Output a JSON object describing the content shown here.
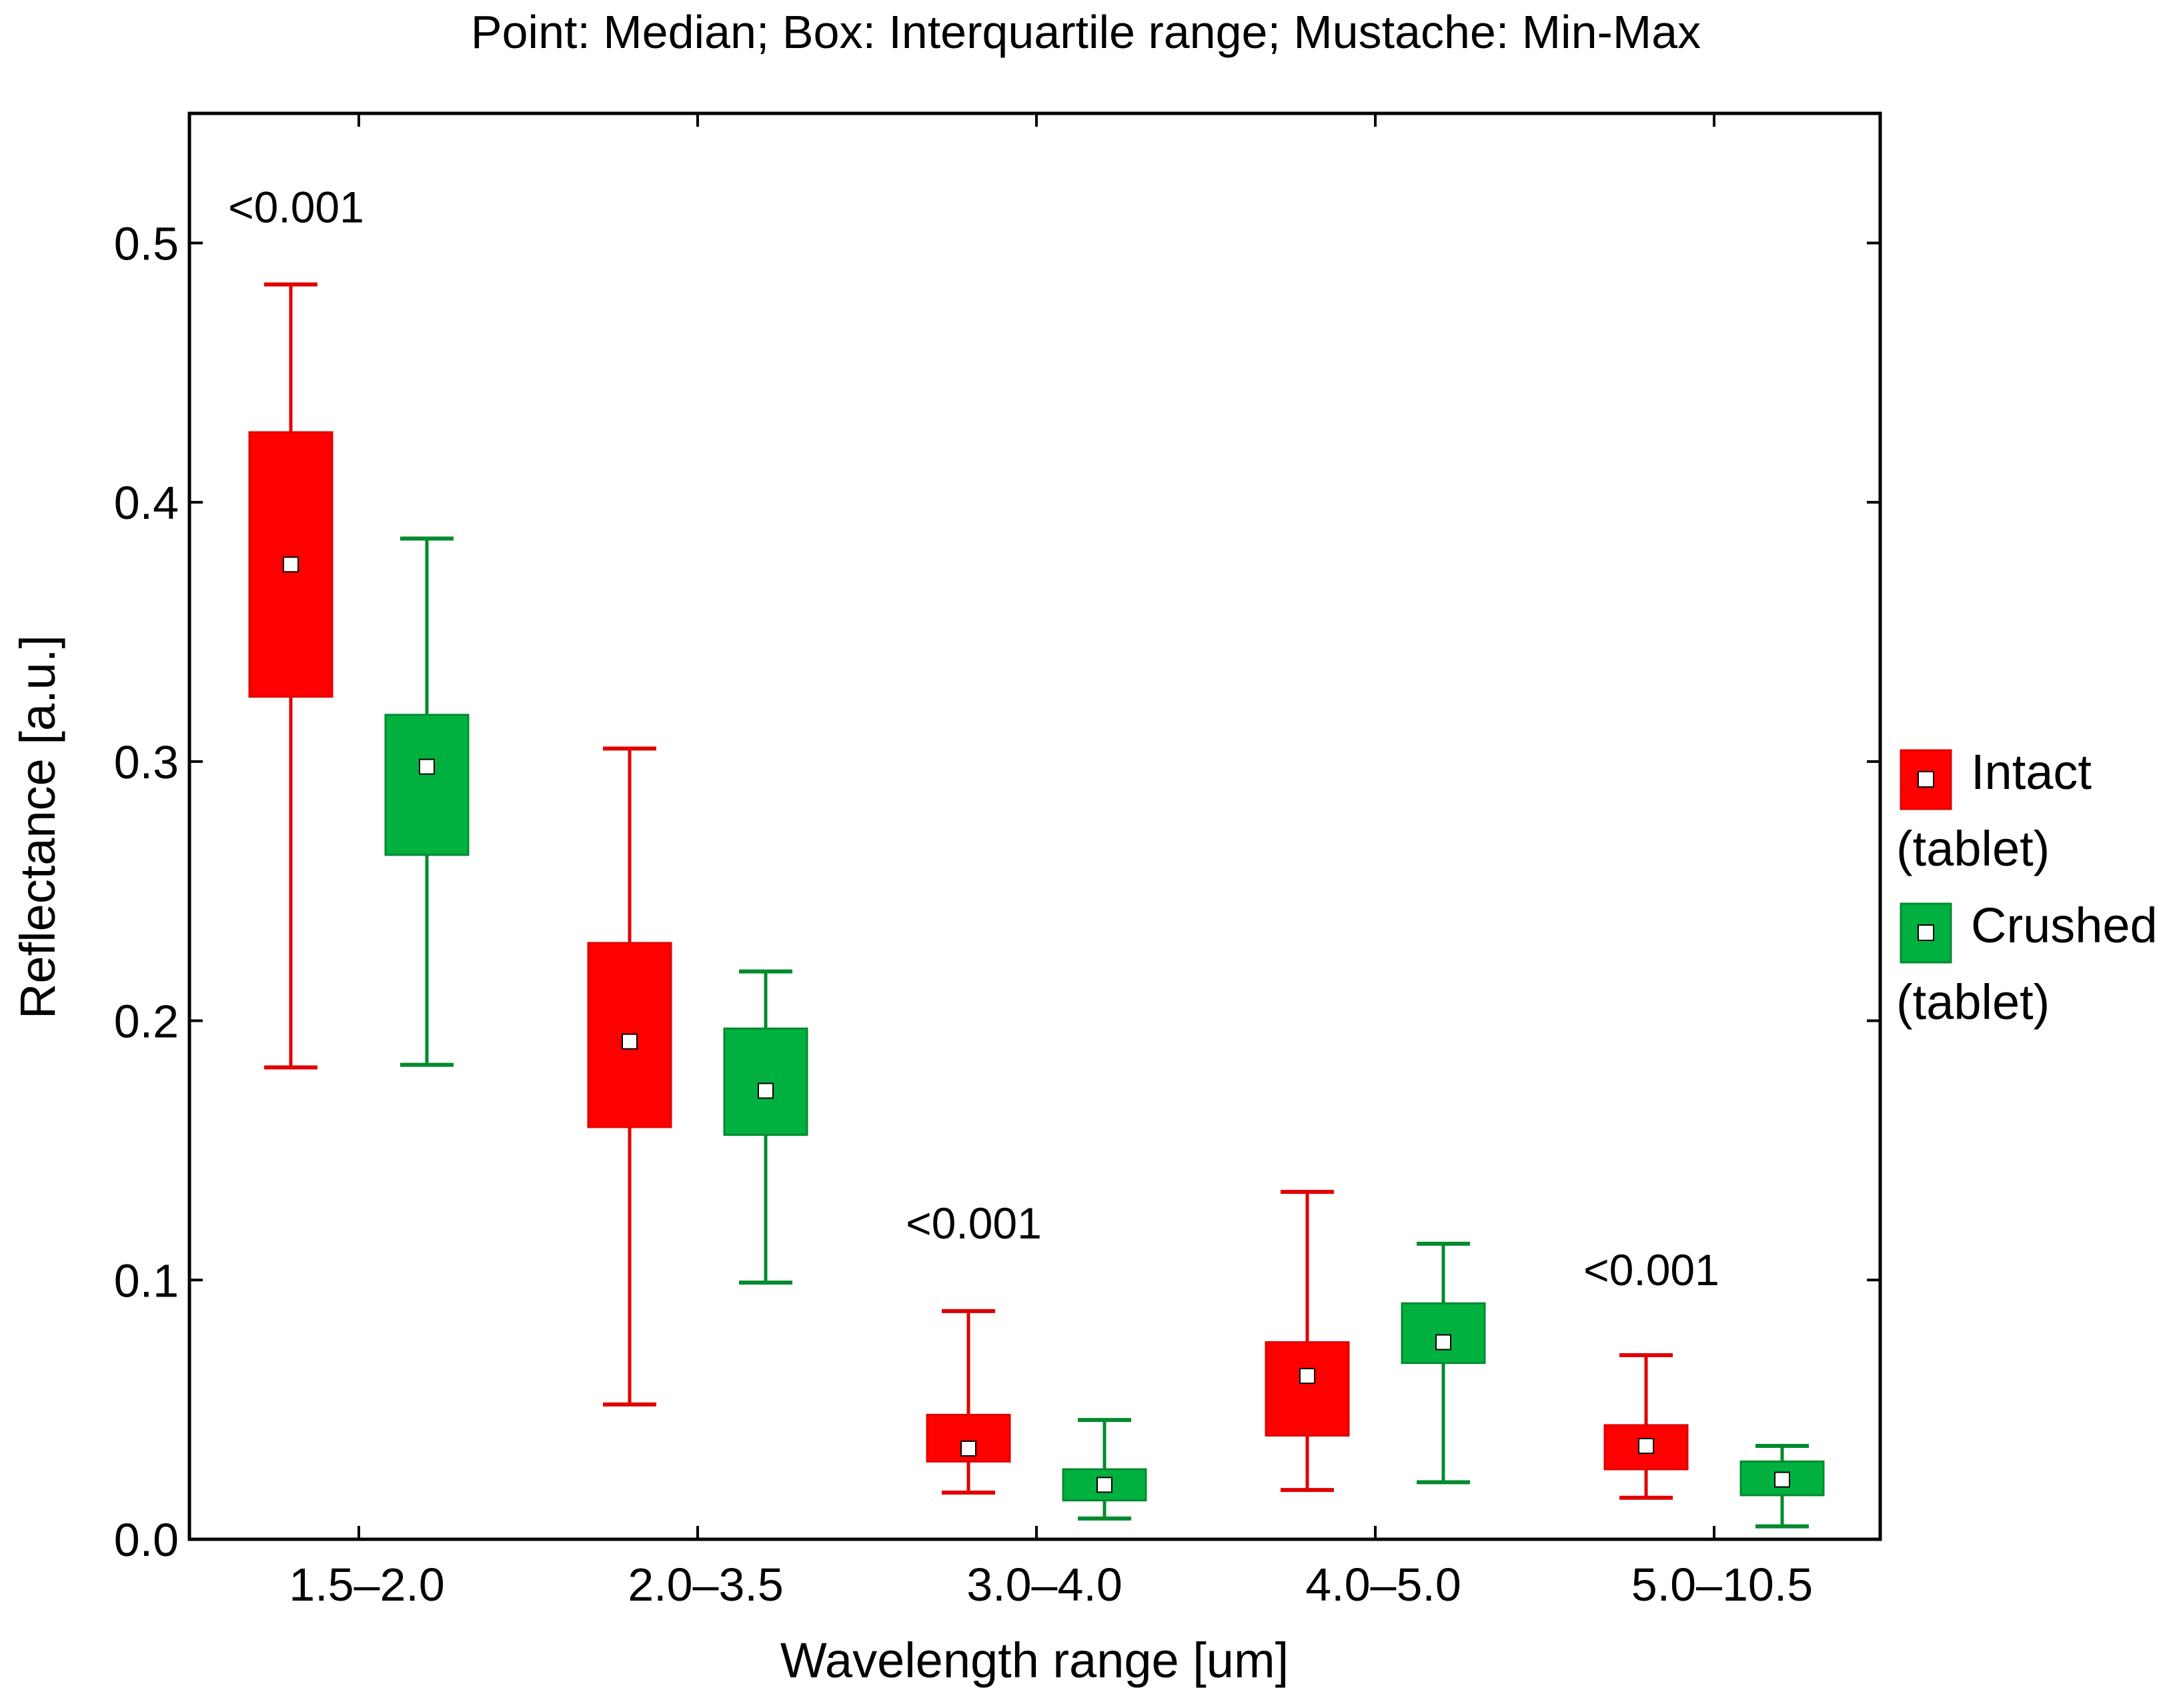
{
  "chart_data": {
    "type": "box",
    "title": "Point: Median; Box: Interquartile range; Mustache: Min-Max",
    "xlabel": "Wavelength range [um]",
    "ylabel": "Reflectance [a.u.]",
    "ylim": [
      0.0,
      0.55
    ],
    "yticks": [
      0.0,
      0.1,
      0.2,
      0.3,
      0.4,
      0.5
    ],
    "ytick_labels": [
      "0.0",
      "0.1",
      "0.2",
      "0.3",
      "0.4",
      "0.5"
    ],
    "categories": [
      "1.5–2.0",
      "2.0–3.5",
      "3.0–4.0",
      "4.0–5.0",
      "5.0–10.5"
    ],
    "legend_position": "right",
    "series": [
      {
        "name": "Intact (tablet)",
        "legend_line1": "Intact",
        "legend_line2": "(tablet)",
        "color": "#ff0000",
        "stroke": "#e00000",
        "boxes": [
          {
            "min": 0.182,
            "q1": 0.325,
            "median": 0.376,
            "q3": 0.427,
            "max": 0.484
          },
          {
            "min": 0.052,
            "q1": 0.159,
            "median": 0.192,
            "q3": 0.23,
            "max": 0.305
          },
          {
            "min": 0.018,
            "q1": 0.03,
            "median": 0.035,
            "q3": 0.048,
            "max": 0.088
          },
          {
            "min": 0.019,
            "q1": 0.04,
            "median": 0.063,
            "q3": 0.076,
            "max": 0.134
          },
          {
            "min": 0.016,
            "q1": 0.027,
            "median": 0.036,
            "q3": 0.044,
            "max": 0.071
          }
        ]
      },
      {
        "name": "Crushed (tablet)",
        "legend_line1": "Crushed",
        "legend_line2": "(tablet)",
        "color": "#00b140",
        "stroke": "#008a2e",
        "boxes": [
          {
            "min": 0.183,
            "q1": 0.264,
            "median": 0.298,
            "q3": 0.318,
            "max": 0.386
          },
          {
            "min": 0.099,
            "q1": 0.156,
            "median": 0.173,
            "q3": 0.197,
            "max": 0.219
          },
          {
            "min": 0.008,
            "q1": 0.015,
            "median": 0.021,
            "q3": 0.027,
            "max": 0.046
          },
          {
            "min": 0.022,
            "q1": 0.068,
            "median": 0.076,
            "q3": 0.091,
            "max": 0.114
          },
          {
            "min": 0.005,
            "q1": 0.017,
            "median": 0.023,
            "q3": 0.03,
            "max": 0.036
          }
        ]
      }
    ],
    "annotations": [
      {
        "text": "<0.001",
        "category_index": 0,
        "y": 0.508
      },
      {
        "text": "<0.001",
        "category_index": 2,
        "y": 0.116
      },
      {
        "text": "<0.001",
        "category_index": 4,
        "y": 0.098
      }
    ]
  }
}
